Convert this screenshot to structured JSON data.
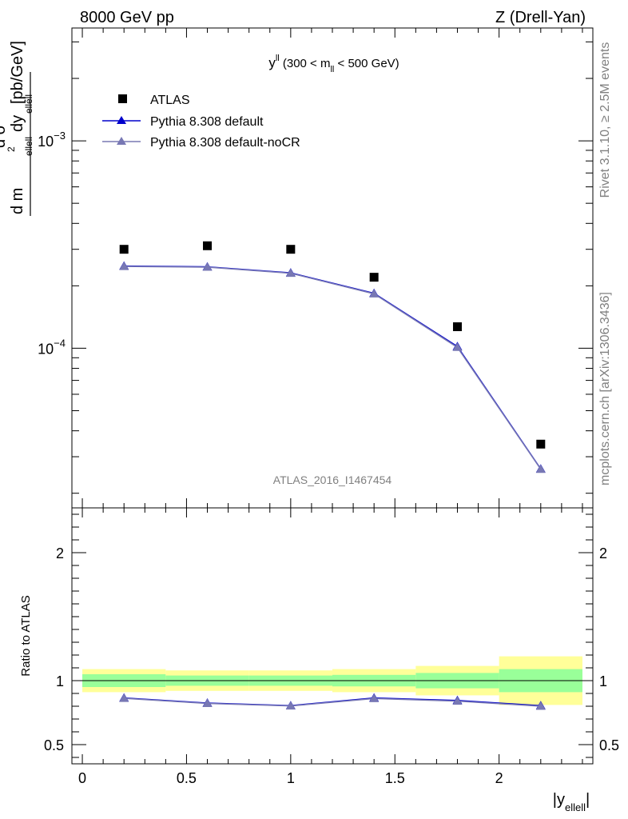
{
  "header": {
    "left": "8000 GeV pp",
    "right": "Z (Drell-Yan)"
  },
  "side_labels": {
    "rivet": "Rivet 3.1.10, ≥ 2.5M events",
    "mcplots": "mcplots.cern.ch [arXiv:1306.3436]"
  },
  "watermark": "ATLAS_2016_I1467454",
  "colors": {
    "atlas": "#000000",
    "default": "#0000cc",
    "noCR": "#7878b4",
    "band_inner": "#99ff99",
    "band_outer": "#ffff99"
  },
  "chart_data": [
    {
      "type": "scatter",
      "panel": "main",
      "title": "y^ll (300 < m_ll < 500 GeV)",
      "title_parts": {
        "main": "y",
        "sup": "ll",
        "pre": " (300 < m",
        "sub": "ll",
        "post": " < 500 GeV)"
      },
      "ylabel": "d²σ / d m_ellell dy_ellell [pb/GeV]",
      "yscale": "log",
      "ylim": [
        1.7e-05,
        0.0035
      ],
      "xlim": [
        -0.05,
        2.45
      ],
      "y_ticks": [
        {
          "value": 0.0001,
          "mantissa": "10",
          "exponent": "−4"
        },
        {
          "value": 0.001,
          "mantissa": "10",
          "exponent": "−3"
        }
      ],
      "legend_position": "top-left",
      "series": [
        {
          "name": "ATLAS",
          "marker": "square",
          "x": [
            0.2,
            0.6,
            1.0,
            1.4,
            1.8,
            2.2
          ],
          "y": [
            0.0003,
            0.000312,
            0.0003,
            0.00022,
            0.000127,
            3.45e-05
          ]
        },
        {
          "name": "Pythia 8.308 default",
          "marker": "triangle",
          "x": [
            0.2,
            0.6,
            1.0,
            1.4,
            1.8,
            2.2
          ],
          "y": [
            0.000249,
            0.000247,
            0.000231,
            0.000184,
            0.000102,
            2.62e-05
          ]
        },
        {
          "name": "Pythia 8.308 default-noCR",
          "marker": "triangle",
          "x": [
            0.2,
            0.6,
            1.0,
            1.4,
            1.8,
            2.2
          ],
          "y": [
            0.000248,
            0.000246,
            0.00023,
            0.000183,
            0.000101,
            2.61e-05
          ]
        }
      ]
    },
    {
      "type": "line",
      "panel": "ratio",
      "ylabel": "Ratio to ATLAS",
      "ylim": [
        0.35,
        2.35
      ],
      "xlim": [
        -0.05,
        2.45
      ],
      "xlabel": "|y_ellell|",
      "x_ticks": [
        {
          "value": 0,
          "label": "0"
        },
        {
          "value": 0.5,
          "label": "0.5"
        },
        {
          "value": 1,
          "label": "1"
        },
        {
          "value": 1.5,
          "label": "1.5"
        },
        {
          "value": 2,
          "label": "2"
        }
      ],
      "y_ticks": [
        {
          "value": 0.5,
          "label": "0.5"
        },
        {
          "value": 1,
          "label": "1"
        },
        {
          "value": 2,
          "label": "2"
        }
      ],
      "bands": [
        {
          "x0": 0.0,
          "x1": 0.4,
          "inner": [
            0.95,
            1.05
          ],
          "outer": [
            0.91,
            1.09
          ]
        },
        {
          "x0": 0.4,
          "x1": 0.8,
          "inner": [
            0.96,
            1.04
          ],
          "outer": [
            0.92,
            1.08
          ]
        },
        {
          "x0": 0.8,
          "x1": 1.2,
          "inner": [
            0.96,
            1.04
          ],
          "outer": [
            0.92,
            1.08
          ]
        },
        {
          "x0": 1.2,
          "x1": 1.6,
          "inner": [
            0.955,
            1.045
          ],
          "outer": [
            0.91,
            1.09
          ]
        },
        {
          "x0": 1.6,
          "x1": 2.0,
          "inner": [
            0.94,
            1.06
          ],
          "outer": [
            0.885,
            1.115
          ]
        },
        {
          "x0": 2.0,
          "x1": 2.4,
          "inner": [
            0.91,
            1.09
          ],
          "outer": [
            0.81,
            1.19
          ]
        }
      ],
      "series": [
        {
          "name": "Pythia 8.308 default",
          "x": [
            0.2,
            0.6,
            1.0,
            1.4,
            1.8,
            2.2
          ],
          "y": [
            0.865,
            0.825,
            0.805,
            0.865,
            0.845,
            0.805
          ]
        },
        {
          "name": "Pythia 8.308 default-noCR",
          "x": [
            0.2,
            0.6,
            1.0,
            1.4,
            1.8,
            2.2
          ],
          "y": [
            0.862,
            0.822,
            0.802,
            0.86,
            0.84,
            0.8
          ]
        }
      ]
    }
  ]
}
